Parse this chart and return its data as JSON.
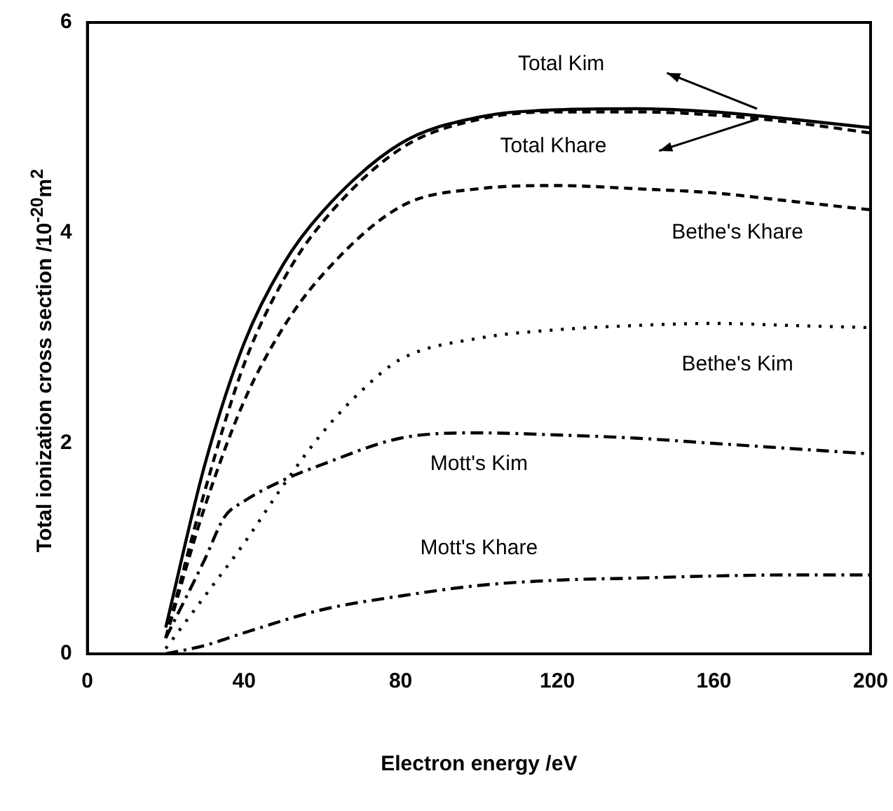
{
  "chart_data": {
    "type": "line",
    "xlabel": "Electron energy /eV",
    "ylabel": "Total ionization cross section /10$^{-20}$m$^{2}$",
    "xlim": [
      0,
      200
    ],
    "xticks": [
      0,
      40,
      80,
      120,
      160,
      200
    ],
    "ylim": [
      0,
      6
    ],
    "yticks": [
      0,
      2,
      4,
      6
    ],
    "grid": false,
    "legend": false,
    "marker": "none",
    "series": [
      {
        "name": "Total Kim",
        "color": "#000000",
        "line_style": "solid",
        "x": [
          20,
          30,
          40,
          50,
          60,
          80,
          100,
          120,
          140,
          160,
          180,
          200
        ],
        "values": [
          0.25,
          1.8,
          2.95,
          3.7,
          4.2,
          4.85,
          5.1,
          5.17,
          5.18,
          5.15,
          5.08,
          5.0
        ]
      },
      {
        "name": "Total Khare",
        "color": "#000000",
        "line_style": "dashed",
        "x": [
          20,
          30,
          40,
          50,
          60,
          80,
          100,
          120,
          140,
          160,
          180,
          200
        ],
        "values": [
          0.15,
          1.55,
          2.75,
          3.55,
          4.1,
          4.8,
          5.08,
          5.15,
          5.15,
          5.12,
          5.05,
          4.95
        ]
      },
      {
        "name": "Bethe's Khare",
        "color": "#000000",
        "line_style": "dashed",
        "x": [
          20,
          30,
          40,
          50,
          60,
          80,
          100,
          120,
          140,
          160,
          180,
          200
        ],
        "values": [
          0.15,
          1.4,
          2.4,
          3.1,
          3.6,
          4.25,
          4.42,
          4.45,
          4.42,
          4.38,
          4.3,
          4.22
        ]
      },
      {
        "name": "Bethe's Kim",
        "color": "#000000",
        "line_style": "dotted",
        "x": [
          20,
          30,
          40,
          50,
          60,
          70,
          80,
          100,
          120,
          140,
          160,
          180,
          200
        ],
        "values": [
          0.05,
          0.55,
          1.05,
          1.6,
          2.1,
          2.5,
          2.8,
          3.0,
          3.08,
          3.12,
          3.14,
          3.12,
          3.1
        ]
      },
      {
        "name": "Mott's Kim",
        "color": "#000000",
        "line_style": "dashdot",
        "x": [
          20,
          30,
          35,
          40,
          50,
          60,
          80,
          100,
          120,
          140,
          160,
          180,
          200
        ],
        "values": [
          0.15,
          0.9,
          1.3,
          1.45,
          1.65,
          1.8,
          2.05,
          2.1,
          2.08,
          2.05,
          2.0,
          1.95,
          1.9
        ]
      },
      {
        "name": "Mott's Khare",
        "color": "#000000",
        "line_style": "dashdot",
        "x": [
          20,
          30,
          40,
          60,
          80,
          100,
          120,
          140,
          160,
          180,
          200
        ],
        "values": [
          0,
          0.08,
          0.2,
          0.42,
          0.55,
          0.65,
          0.7,
          0.72,
          0.74,
          0.75,
          0.75
        ]
      }
    ]
  }
}
